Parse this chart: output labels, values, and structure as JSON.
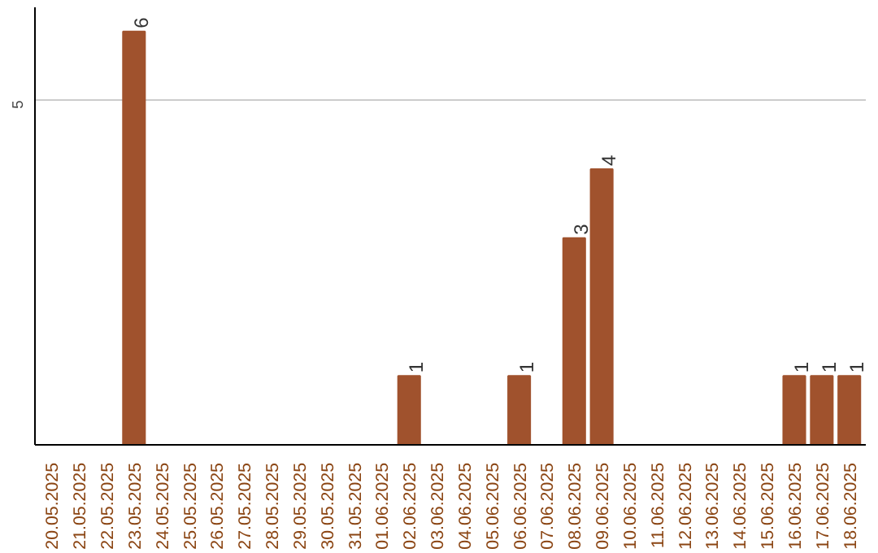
{
  "chart_data": {
    "type": "bar",
    "categories": [
      "20.05.2025",
      "21.05.2025",
      "22.05.2025",
      "23.05.2025",
      "24.05.2025",
      "25.05.2025",
      "26.05.2025",
      "27.05.2025",
      "28.05.2025",
      "29.05.2025",
      "30.05.2025",
      "31.05.2025",
      "01.06.2025",
      "02.06.2025",
      "03.06.2025",
      "04.06.2025",
      "05.06.2025",
      "06.06.2025",
      "07.06.2025",
      "08.06.2025",
      "09.06.2025",
      "10.06.2025",
      "11.06.2025",
      "12.06.2025",
      "13.06.2025",
      "14.06.2025",
      "15.06.2025",
      "16.06.2025",
      "17.06.2025",
      "18.06.2025"
    ],
    "values": [
      0,
      0,
      0,
      6,
      0,
      0,
      0,
      0,
      0,
      0,
      0,
      0,
      0,
      1,
      0,
      0,
      0,
      1,
      0,
      3,
      4,
      0,
      0,
      0,
      0,
      0,
      0,
      1,
      1,
      1
    ],
    "value_labels": [
      null,
      null,
      null,
      "6",
      null,
      null,
      null,
      null,
      null,
      null,
      null,
      null,
      null,
      "1",
      null,
      null,
      null,
      "1",
      null,
      "3",
      "4",
      null,
      null,
      null,
      null,
      null,
      null,
      "1",
      "1",
      "1"
    ],
    "color": "#a0522d",
    "ylim": [
      0,
      6.35
    ],
    "yticks": [
      5
    ],
    "grid": "y"
  }
}
